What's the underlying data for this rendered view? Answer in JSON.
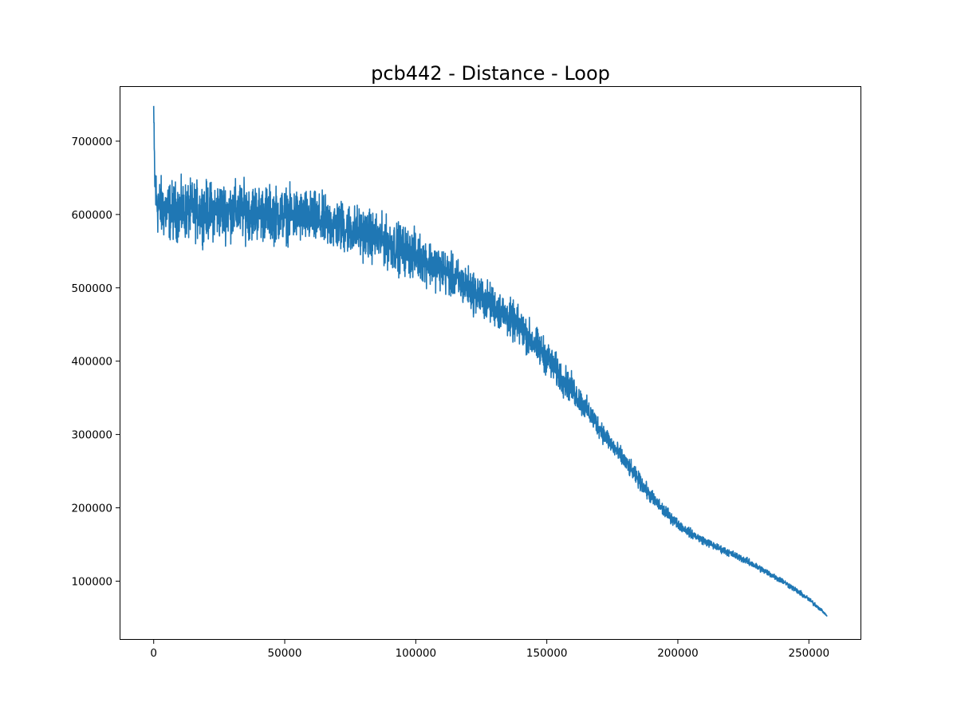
{
  "chart_data": {
    "type": "line",
    "title": "pcb442 - Distance - Loop",
    "xlabel": "",
    "ylabel": "",
    "xlim": [
      -13000,
      270000
    ],
    "ylim": [
      20000,
      775000
    ],
    "grid": false,
    "x_ticks": [
      {
        "value": 0,
        "label": "0"
      },
      {
        "value": 50000,
        "label": "50000"
      },
      {
        "value": 100000,
        "label": "100000"
      },
      {
        "value": 150000,
        "label": "150000"
      },
      {
        "value": 200000,
        "label": "200000"
      },
      {
        "value": 250000,
        "label": "250000"
      }
    ],
    "y_ticks": [
      {
        "value": 100000,
        "label": "100000"
      },
      {
        "value": 200000,
        "label": "200000"
      },
      {
        "value": 300000,
        "label": "300000"
      },
      {
        "value": 400000,
        "label": "400000"
      },
      {
        "value": 500000,
        "label": "500000"
      },
      {
        "value": 600000,
        "label": "600000"
      },
      {
        "value": 700000,
        "label": "700000"
      }
    ],
    "series": [
      {
        "color": "#1f77b4",
        "x": [
          0,
          200,
          500,
          1000,
          2000,
          5000,
          10000,
          15000,
          20000,
          25000,
          30000,
          35000,
          40000,
          45000,
          50000,
          55000,
          60000,
          65000,
          70000,
          75000,
          80000,
          85000,
          90000,
          95000,
          100000,
          105000,
          110000,
          115000,
          120000,
          125000,
          130000,
          135000,
          140000,
          145000,
          150000,
          155000,
          160000,
          165000,
          170000,
          175000,
          180000,
          185000,
          190000,
          195000,
          200000,
          205000,
          210000,
          215000,
          220000,
          225000,
          230000,
          235000,
          240000,
          245000,
          250000,
          255000,
          257000
        ],
        "y": [
          748000,
          680000,
          640000,
          620000,
          610000,
          605000,
          605000,
          605000,
          605000,
          605000,
          605000,
          605000,
          603000,
          600000,
          600000,
          598000,
          595000,
          590000,
          585000,
          580000,
          575000,
          568000,
          560000,
          552000,
          545000,
          535000,
          525000,
          512000,
          500000,
          487000,
          475000,
          460000,
          445000,
          425000,
          405000,
          380000,
          360000,
          335000,
          310000,
          285000,
          262000,
          238000,
          214000,
          195000,
          178000,
          165000,
          155000,
          146000,
          138000,
          130000,
          120000,
          110000,
          100000,
          88000,
          75000,
          60000,
          52000
        ],
        "noise": [
          0,
          40000,
          40000,
          40000,
          38000,
          36000,
          35000,
          35000,
          35000,
          35000,
          35000,
          35000,
          34000,
          34000,
          33000,
          33000,
          32000,
          32000,
          32000,
          31000,
          31000,
          30000,
          30000,
          30000,
          29000,
          28000,
          27000,
          26000,
          26000,
          25000,
          24000,
          24000,
          23000,
          22000,
          21000,
          20000,
          18000,
          15000,
          13000,
          12000,
          11000,
          10000,
          9000,
          8000,
          6000,
          5500,
          5000,
          4500,
          4500,
          4200,
          4000,
          3800,
          3500,
          3200,
          3000,
          2000,
          0
        ]
      }
    ]
  }
}
